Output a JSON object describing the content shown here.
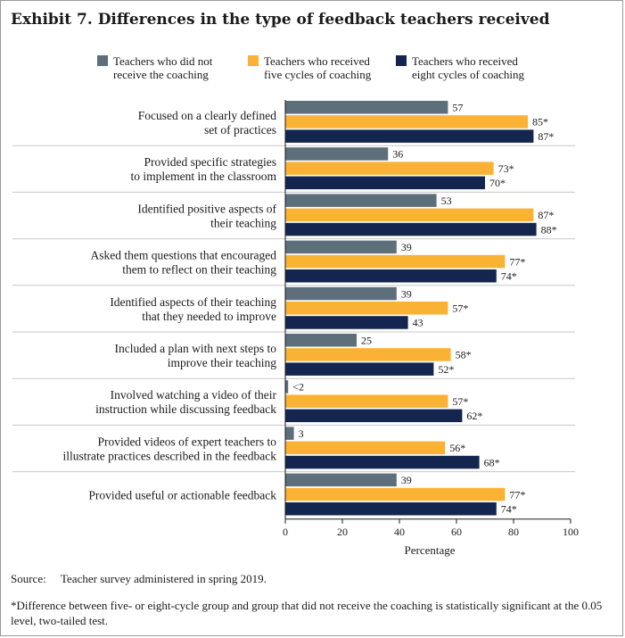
{
  "title": "Exhibit 7. Differences in the type of feedback teachers received",
  "chart_data": {
    "type": "bar",
    "orientation": "horizontal",
    "categories": [
      [
        "Focused on a clearly defined",
        "set of practices"
      ],
      [
        "Provided specific strategies",
        "to implement in the classroom"
      ],
      [
        "Identified positive aspects of",
        "their teaching"
      ],
      [
        "Asked them questions that encouraged",
        "them to reflect on their teaching"
      ],
      [
        "Identified aspects of their teaching",
        "that they needed to improve"
      ],
      [
        "Included a plan with next steps to",
        "improve their teaching"
      ],
      [
        "Involved watching a video of their",
        "instruction while discussing feedback"
      ],
      [
        "Provided videos of expert teachers to",
        "illustrate practices described in the feedback"
      ],
      [
        "Provided useful or actionable feedback"
      ]
    ],
    "series": [
      {
        "name": "Teachers who did not receive the coaching",
        "legend_lines": [
          "Teachers who did not",
          "receive the coaching"
        ],
        "color": "#5c6f7b",
        "values": [
          57,
          36,
          53,
          39,
          39,
          25,
          1,
          3,
          39
        ],
        "labels": [
          "57",
          "36",
          "53",
          "39",
          "39",
          "25",
          "<2",
          "3",
          "39"
        ]
      },
      {
        "name": "Teachers who received five cycles of coaching",
        "legend_lines": [
          "Teachers who received",
          "five cycles of coaching"
        ],
        "color": "#f9b233",
        "values": [
          85,
          73,
          87,
          77,
          57,
          58,
          57,
          56,
          77
        ],
        "labels": [
          "85*",
          "73*",
          "87*",
          "77*",
          "57*",
          "58*",
          "57*",
          "56*",
          "77*"
        ]
      },
      {
        "name": "Teachers who received eight cycles of coaching",
        "legend_lines": [
          "Teachers who received",
          "eight cycles of coaching"
        ],
        "color": "#14254f",
        "values": [
          87,
          70,
          88,
          74,
          43,
          52,
          62,
          68,
          74
        ],
        "labels": [
          "87*",
          "70*",
          "88*",
          "74*",
          "43",
          "52*",
          "62*",
          "68*",
          "74*"
        ]
      }
    ],
    "xlabel": "Percentage",
    "xlim": [
      0,
      100
    ],
    "xticks": [
      0,
      20,
      40,
      60,
      80,
      100
    ],
    "xtick_labels": [
      "0",
      "20",
      "40",
      "60",
      "80",
      "100"
    ],
    "legend_position": "top",
    "grid": false
  },
  "source": {
    "label": "Source:",
    "text": "Teacher survey administered in spring 2019."
  },
  "footnote": "*Difference between five- or eight-cycle group and group that did not receive the coaching is statistically significant at the 0.05 level, two-tailed test."
}
